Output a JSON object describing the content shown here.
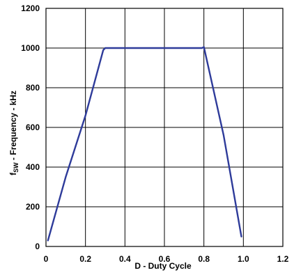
{
  "chart_data": {
    "type": "line",
    "title": "",
    "xlabel": "D - Duty Cycle",
    "ylabel": {
      "main": "f",
      "subscript": "SW",
      "rest": " - Frequency - kHz"
    },
    "xlim": [
      0,
      1.2
    ],
    "ylim": [
      0,
      1200
    ],
    "xticks": [
      "0",
      "0.2",
      "0.4",
      "0.6",
      "0.8",
      "1.0",
      "1.2"
    ],
    "yticks": [
      "0",
      "200",
      "400",
      "600",
      "800",
      "1000",
      "1200"
    ],
    "grid": true,
    "series": [
      {
        "color": "#2e3b9a",
        "x": [
          0.01,
          0.1,
          0.2,
          0.29,
          0.3,
          0.4,
          0.5,
          0.6,
          0.7,
          0.79,
          0.8,
          0.9,
          0.99
        ],
        "y": [
          30,
          350,
          660,
          990,
          1000,
          1000,
          1000,
          1000,
          1000,
          1000,
          1005,
          560,
          50
        ]
      }
    ]
  }
}
